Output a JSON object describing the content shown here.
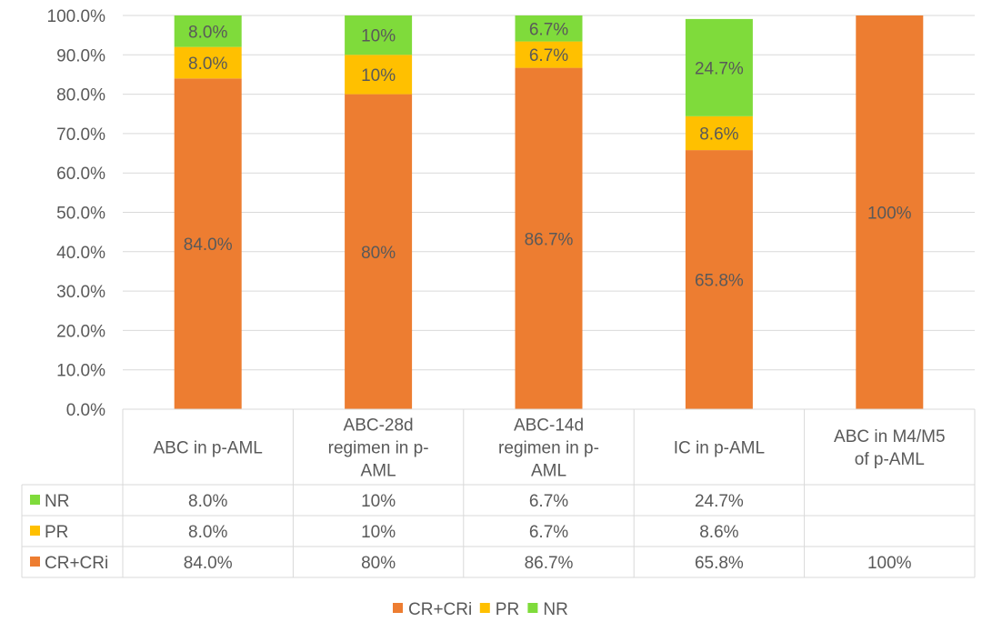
{
  "chart_data": {
    "type": "bar",
    "stacked": true,
    "categories": [
      [
        "ABC in p-AML"
      ],
      [
        "ABC-28d",
        "regimen in p-",
        "AML"
      ],
      [
        "ABC-14d",
        "regimen in p-",
        "AML"
      ],
      [
        "IC in p-AML"
      ],
      [
        "ABC in M4/M5",
        "of p-AML"
      ]
    ],
    "series": [
      {
        "name": "CR+CRi",
        "color": "#ED7D31",
        "values": [
          84.0,
          80,
          86.7,
          65.8,
          100
        ],
        "labels": [
          "84.0%",
          "80%",
          "86.7%",
          "65.8%",
          "100%"
        ]
      },
      {
        "name": "PR",
        "color": "#FFC000",
        "values": [
          8.0,
          10,
          6.7,
          8.6,
          0
        ],
        "labels": [
          "8.0%",
          "10%",
          "6.7%",
          "8.6%",
          ""
        ]
      },
      {
        "name": "NR",
        "color": "#7FDB3B",
        "values": [
          8.0,
          10,
          6.7,
          24.7,
          0
        ],
        "labels": [
          "8.0%",
          "10%",
          "6.7%",
          "24.7%",
          ""
        ]
      }
    ],
    "yticks": [
      "0.0%",
      "10.0%",
      "20.0%",
      "30.0%",
      "40.0%",
      "50.0%",
      "60.0%",
      "70.0%",
      "80.0%",
      "90.0%",
      "100.0%"
    ],
    "ylim": [
      0,
      100
    ],
    "title": "",
    "xlabel": "",
    "ylabel": "",
    "legend": "bottom",
    "data_table": true
  }
}
